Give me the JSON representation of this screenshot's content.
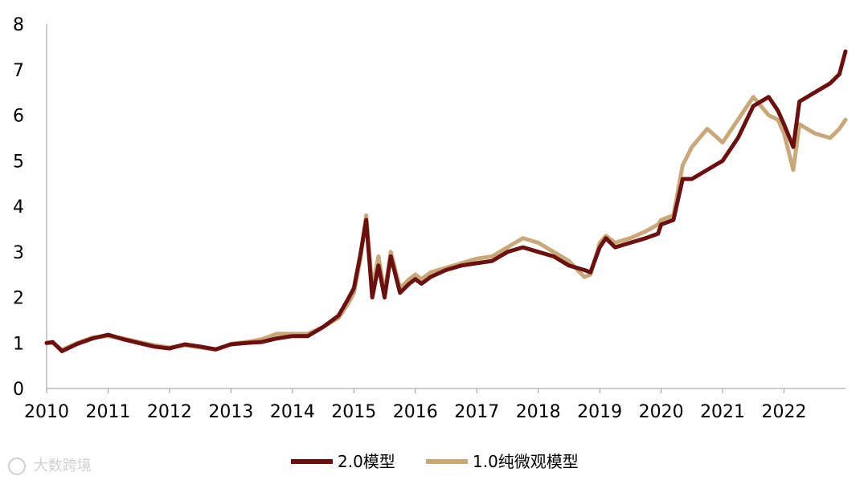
{
  "chart_data": {
    "type": "line",
    "title": "",
    "xlabel": "",
    "ylabel": "",
    "xlim": [
      2010.0,
      2023.0
    ],
    "ylim": [
      0,
      8
    ],
    "y_ticks": [
      "0",
      "1",
      "2",
      "3",
      "4",
      "5",
      "6",
      "7",
      "8"
    ],
    "x_ticks": [
      "2010",
      "2011",
      "2012",
      "2013",
      "2014",
      "2015",
      "2016",
      "2017",
      "2018",
      "2019",
      "2020",
      "2021",
      "2022"
    ],
    "grid": false,
    "legend_position": "bottom",
    "series": [
      {
        "name": "2.0模型",
        "color": "#6b0f0f",
        "x": [
          2010.0,
          2010.1,
          2010.25,
          2010.5,
          2010.75,
          2011.0,
          2011.25,
          2011.5,
          2011.75,
          2012.0,
          2012.25,
          2012.5,
          2012.75,
          2013.0,
          2013.25,
          2013.5,
          2013.75,
          2014.0,
          2014.25,
          2014.5,
          2014.75,
          2014.9,
          2015.0,
          2015.1,
          2015.2,
          2015.3,
          2015.4,
          2015.5,
          2015.6,
          2015.75,
          2015.9,
          2016.0,
          2016.1,
          2016.25,
          2016.5,
          2016.75,
          2017.0,
          2017.25,
          2017.5,
          2017.75,
          2018.0,
          2018.25,
          2018.5,
          2018.75,
          2018.85,
          2019.0,
          2019.1,
          2019.25,
          2019.5,
          2019.75,
          2019.95,
          2020.0,
          2020.2,
          2020.35,
          2020.5,
          2020.75,
          2021.0,
          2021.25,
          2021.5,
          2021.75,
          2021.9,
          2022.0,
          2022.15,
          2022.25,
          2022.5,
          2022.75,
          2022.9,
          2023.0
        ],
        "values": [
          1.0,
          1.02,
          0.82,
          0.98,
          1.1,
          1.18,
          1.08,
          1.0,
          0.92,
          0.88,
          0.97,
          0.92,
          0.86,
          0.97,
          1.0,
          1.02,
          1.1,
          1.15,
          1.15,
          1.35,
          1.6,
          1.95,
          2.2,
          2.9,
          3.7,
          2.0,
          2.7,
          2.0,
          2.9,
          2.1,
          2.3,
          2.4,
          2.3,
          2.45,
          2.6,
          2.7,
          2.75,
          2.8,
          3.0,
          3.1,
          3.0,
          2.9,
          2.7,
          2.6,
          2.55,
          3.1,
          3.3,
          3.1,
          3.2,
          3.3,
          3.4,
          3.6,
          3.7,
          4.6,
          4.6,
          4.8,
          5.0,
          5.5,
          6.2,
          6.4,
          6.1,
          5.8,
          5.3,
          6.3,
          6.5,
          6.7,
          6.9,
          7.4
        ]
      },
      {
        "name": "1.0纯微观模型",
        "color": "#c8a878",
        "x": [
          2010.0,
          2010.1,
          2010.25,
          2010.5,
          2010.75,
          2011.0,
          2011.25,
          2011.5,
          2011.75,
          2012.0,
          2012.25,
          2012.5,
          2012.75,
          2013.0,
          2013.25,
          2013.5,
          2013.75,
          2014.0,
          2014.25,
          2014.5,
          2014.75,
          2014.9,
          2015.0,
          2015.1,
          2015.2,
          2015.3,
          2015.4,
          2015.5,
          2015.6,
          2015.75,
          2015.9,
          2016.0,
          2016.1,
          2016.25,
          2016.5,
          2016.75,
          2017.0,
          2017.25,
          2017.5,
          2017.75,
          2018.0,
          2018.25,
          2018.5,
          2018.75,
          2018.85,
          2019.0,
          2019.1,
          2019.25,
          2019.5,
          2019.75,
          2019.95,
          2020.0,
          2020.2,
          2020.35,
          2020.5,
          2020.75,
          2021.0,
          2021.25,
          2021.5,
          2021.75,
          2021.9,
          2022.0,
          2022.15,
          2022.25,
          2022.5,
          2022.75,
          2022.9,
          2023.0
        ],
        "values": [
          1.0,
          1.0,
          0.85,
          1.0,
          1.12,
          1.15,
          1.1,
          1.02,
          0.95,
          0.9,
          0.95,
          0.9,
          0.85,
          0.98,
          1.02,
          1.08,
          1.2,
          1.2,
          1.2,
          1.35,
          1.55,
          1.85,
          2.1,
          2.8,
          3.8,
          2.2,
          2.9,
          2.1,
          3.0,
          2.2,
          2.4,
          2.5,
          2.4,
          2.55,
          2.65,
          2.75,
          2.85,
          2.9,
          3.1,
          3.3,
          3.2,
          3.0,
          2.8,
          2.45,
          2.5,
          3.2,
          3.35,
          3.2,
          3.3,
          3.45,
          3.6,
          3.7,
          3.8,
          4.9,
          5.3,
          5.7,
          5.4,
          5.9,
          6.4,
          6.0,
          5.9,
          5.6,
          4.8,
          5.8,
          5.6,
          5.5,
          5.7,
          5.9
        ]
      }
    ]
  },
  "watermark": {
    "text": "大数跨境"
  }
}
